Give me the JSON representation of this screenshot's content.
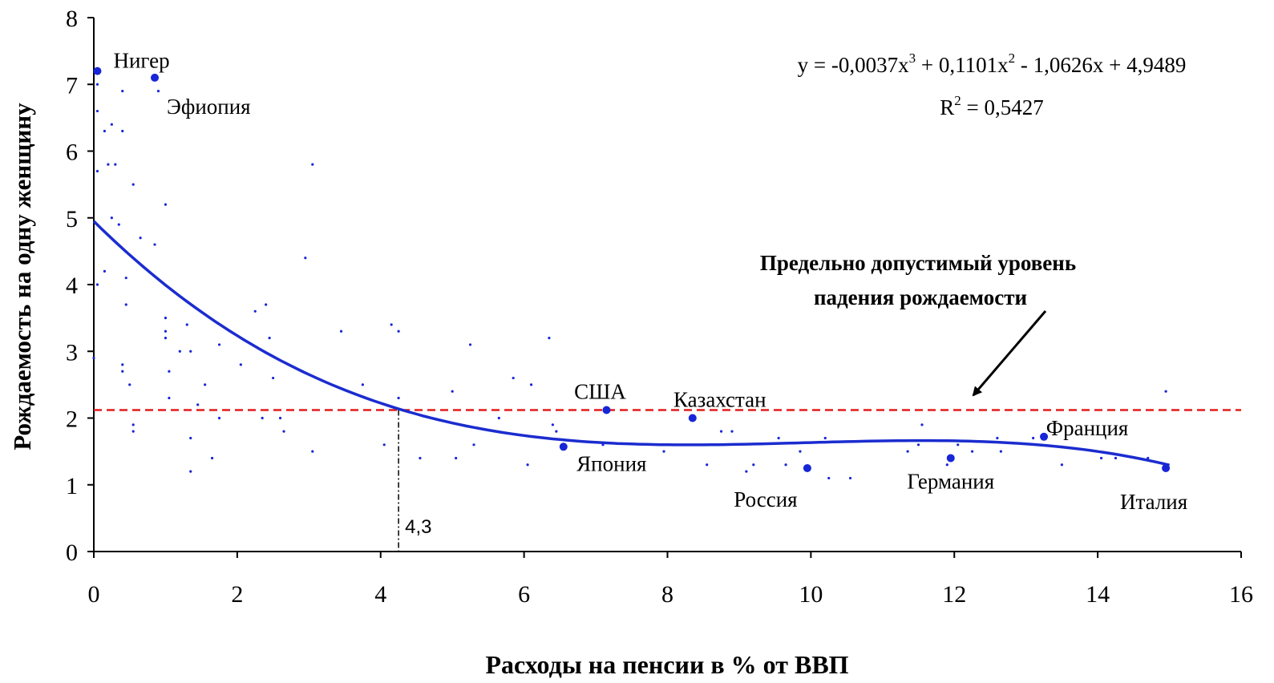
{
  "chart_data": {
    "type": "scatter",
    "title": "",
    "xlabel": "Расходы на пенсии в % от ВВП",
    "ylabel": "Рождаемость на одну женщину",
    "xlim": [
      0,
      16
    ],
    "ylim": [
      0,
      8
    ],
    "x_ticks": [
      "0",
      "2",
      "4",
      "6",
      "8",
      "10",
      "12",
      "14",
      "16"
    ],
    "y_ticks": [
      "0",
      "1",
      "2",
      "3",
      "4",
      "5",
      "6",
      "7",
      "8"
    ],
    "grid": false,
    "highlighted_points": [
      {
        "label": "Нигер",
        "x": 0.05,
        "y": 7.2
      },
      {
        "label": "Эфиопия",
        "x": 0.85,
        "y": 7.1
      },
      {
        "label": "США",
        "x": 7.15,
        "y": 2.12
      },
      {
        "label": "Казахстан",
        "x": 8.35,
        "y": 2.0
      },
      {
        "label": "Япония",
        "x": 6.55,
        "y": 1.57
      },
      {
        "label": "Россия",
        "x": 9.95,
        "y": 1.25
      },
      {
        "label": "Германия",
        "x": 11.95,
        "y": 1.4
      },
      {
        "label": "Франция",
        "x": 13.25,
        "y": 1.72
      },
      {
        "label": "Италия",
        "x": 14.95,
        "y": 1.25
      }
    ],
    "other_points": [
      [
        0.05,
        7.0
      ],
      [
        0.05,
        6.6
      ],
      [
        0.05,
        5.7
      ],
      [
        0.05,
        4.0
      ],
      [
        0.0,
        2.9
      ],
      [
        0.15,
        6.3
      ],
      [
        0.2,
        5.8
      ],
      [
        0.25,
        6.4
      ],
      [
        0.3,
        5.8
      ],
      [
        0.15,
        4.2
      ],
      [
        0.35,
        4.9
      ],
      [
        0.25,
        5.0
      ],
      [
        0.4,
        6.3
      ],
      [
        0.4,
        6.9
      ],
      [
        0.4,
        2.8
      ],
      [
        0.4,
        2.7
      ],
      [
        0.45,
        4.1
      ],
      [
        0.45,
        3.7
      ],
      [
        0.5,
        2.5
      ],
      [
        0.55,
        1.8
      ],
      [
        0.55,
        1.9
      ],
      [
        0.55,
        5.5
      ],
      [
        0.65,
        4.7
      ],
      [
        0.85,
        4.6
      ],
      [
        0.9,
        6.9
      ],
      [
        1.0,
        5.2
      ],
      [
        1.0,
        3.5
      ],
      [
        1.0,
        3.3
      ],
      [
        1.0,
        3.2
      ],
      [
        1.05,
        2.7
      ],
      [
        1.05,
        2.3
      ],
      [
        1.2,
        3.0
      ],
      [
        1.3,
        3.4
      ],
      [
        1.35,
        3.0
      ],
      [
        1.35,
        1.7
      ],
      [
        1.35,
        1.2
      ],
      [
        1.45,
        2.2
      ],
      [
        1.55,
        2.5
      ],
      [
        1.65,
        1.4
      ],
      [
        1.75,
        3.1
      ],
      [
        1.75,
        2.0
      ],
      [
        2.05,
        2.8
      ],
      [
        2.25,
        3.6
      ],
      [
        2.35,
        2.0
      ],
      [
        2.4,
        3.7
      ],
      [
        2.45,
        3.2
      ],
      [
        2.5,
        2.6
      ],
      [
        2.6,
        2.0
      ],
      [
        2.65,
        1.8
      ],
      [
        2.95,
        4.4
      ],
      [
        3.05,
        5.8
      ],
      [
        3.05,
        1.5
      ],
      [
        3.45,
        3.3
      ],
      [
        3.75,
        2.5
      ],
      [
        4.05,
        1.6
      ],
      [
        4.15,
        3.4
      ],
      [
        4.25,
        3.3
      ],
      [
        4.25,
        2.3
      ],
      [
        4.55,
        1.4
      ],
      [
        5.0,
        2.4
      ],
      [
        5.05,
        1.4
      ],
      [
        5.25,
        3.1
      ],
      [
        5.3,
        1.6
      ],
      [
        5.65,
        2.0
      ],
      [
        5.85,
        2.6
      ],
      [
        6.05,
        1.3
      ],
      [
        6.1,
        2.5
      ],
      [
        6.35,
        3.2
      ],
      [
        6.4,
        1.9
      ],
      [
        6.45,
        1.8
      ],
      [
        7.1,
        1.6
      ],
      [
        7.95,
        1.5
      ],
      [
        8.55,
        1.3
      ],
      [
        8.75,
        1.8
      ],
      [
        8.9,
        1.8
      ],
      [
        9.1,
        1.2
      ],
      [
        9.2,
        1.3
      ],
      [
        9.55,
        1.7
      ],
      [
        9.65,
        1.3
      ],
      [
        9.85,
        1.5
      ],
      [
        10.2,
        1.7
      ],
      [
        10.25,
        1.1
      ],
      [
        10.55,
        1.1
      ],
      [
        11.35,
        1.5
      ],
      [
        11.5,
        1.6
      ],
      [
        11.55,
        1.9
      ],
      [
        11.9,
        1.3
      ],
      [
        12.05,
        1.6
      ],
      [
        12.25,
        1.5
      ],
      [
        12.6,
        1.7
      ],
      [
        12.65,
        1.5
      ],
      [
        13.1,
        1.7
      ],
      [
        13.5,
        1.3
      ],
      [
        14.05,
        1.4
      ],
      [
        14.25,
        1.4
      ],
      [
        14.7,
        1.4
      ],
      [
        14.95,
        2.4
      ]
    ],
    "trendline": {
      "type": "polynomial",
      "coefficients": [
        -0.0037,
        0.1101,
        -1.0626,
        4.9489
      ],
      "x_range": [
        0,
        15
      ],
      "equation_text": "y = -0,0037x",
      "equation_exp": "3",
      "equation_mid": " + 0,1101x",
      "equation_exp2": "2",
      "equation_tail": " - 1,0626x + 4,9489",
      "r2_prefix": "R",
      "r2_exp": "2",
      "r2_tail": " = 0,5427"
    },
    "threshold": {
      "y": 2.12,
      "label_line1": "Предельно допустимый уровень",
      "label_line2": "падения рождаемости",
      "color": "#e31c1c"
    },
    "intersection": {
      "x": 4.25,
      "label": "4,3"
    },
    "colors": {
      "points": "#1726d6",
      "trend": "#1b2ccf",
      "axis": "#000000"
    }
  }
}
